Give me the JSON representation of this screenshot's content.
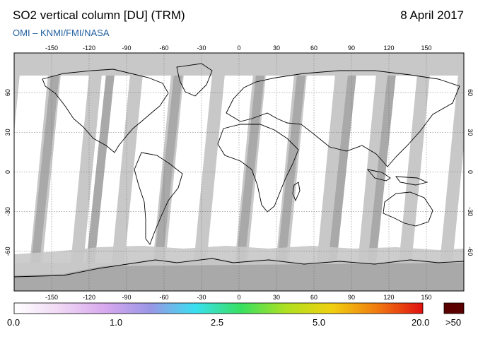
{
  "header": {
    "title": "SO2 vertical column [DU] (TRM)",
    "date": "8 April 2017",
    "credit": "OMI  –  KNMI/FMI/NASA"
  },
  "map": {
    "lon_ticks": [
      "-150",
      "-120",
      "-90",
      "-60",
      "-30",
      "0",
      "30",
      "60",
      "90",
      "120",
      "150"
    ],
    "lat_ticks": [
      "60",
      "30",
      "0",
      "-30",
      "-60"
    ],
    "colors": {
      "nodata": "#c8c8c8",
      "gap": "#a9a9a9",
      "clean": "#ffffff",
      "coast": "#000000"
    }
  },
  "colorbar": {
    "labels": [
      "0.0",
      "1.0",
      "2.5",
      "5.0",
      "20.0"
    ],
    "overflow_label": ">50",
    "overflow_color": "#5a0000",
    "stops": [
      "#ffffff",
      "#f0d8f5",
      "#d8a8ee",
      "#9a96e6",
      "#38e0f0",
      "#38e060",
      "#b0e020",
      "#f0d010",
      "#f07a10",
      "#e01010"
    ]
  }
}
